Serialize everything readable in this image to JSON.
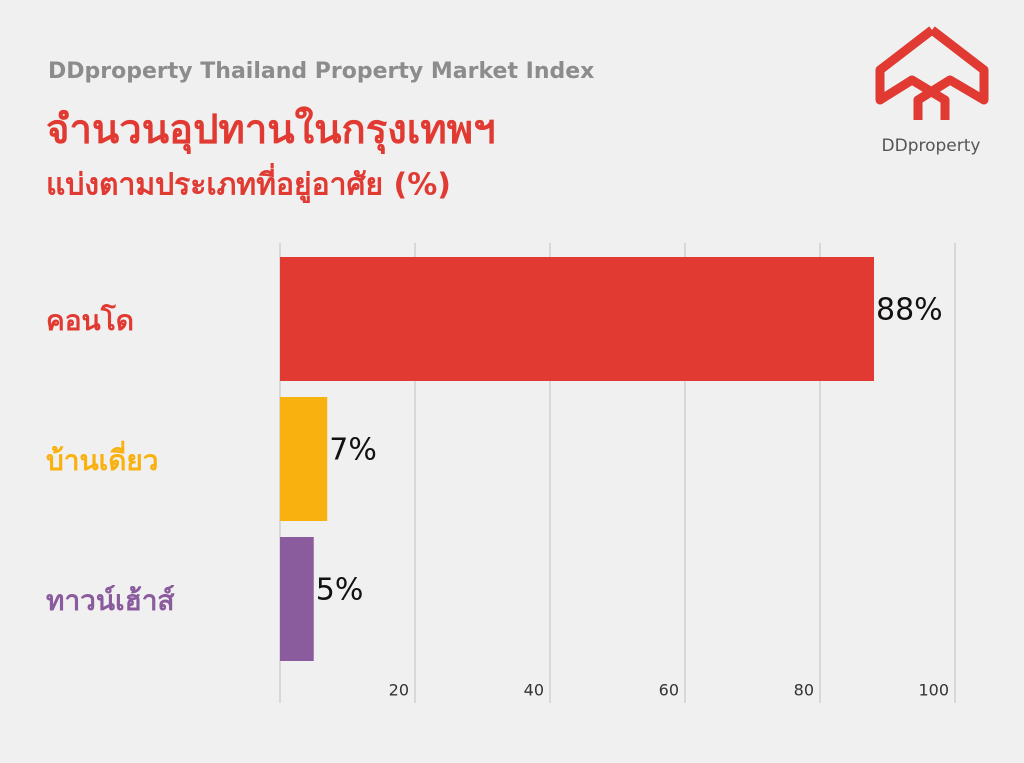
{
  "chart_data": {
    "type": "hbar",
    "header": "DDproperty Thailand Property Market Index",
    "title": "จำนวนอุปทานในกรุงเทพฯ",
    "subtitle": "แบ่งตามประเภทที่อยู่อาศัย (%)",
    "logo_text": "DDproperty",
    "categories": [
      "คอนโด",
      "บ้านเดี่ยว",
      "ทาวน์เฮ้าส์"
    ],
    "values": [
      88,
      7,
      5
    ],
    "value_labels": [
      "88%",
      "7%",
      "5%"
    ],
    "colors": [
      "#e03a32",
      "#f9b10f",
      "#8a5c9e"
    ],
    "xlim": [
      0,
      100
    ],
    "xticks": [
      20,
      40,
      60,
      80,
      100
    ],
    "grid": true
  }
}
